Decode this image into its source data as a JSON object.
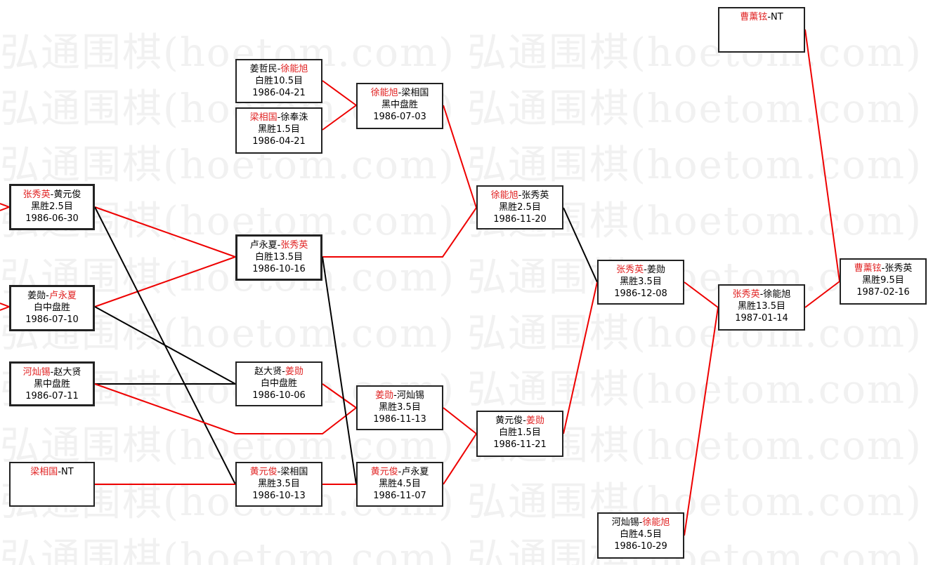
{
  "watermark": "弘通围棋(hoetom.com)",
  "colors": {
    "winner": "#e02020",
    "win_line": "#ee0000",
    "loss_line": "#000000"
  },
  "matches": [
    {
      "id": "A",
      "p1": "姜哲民",
      "p2": "徐能旭",
      "winner": 2,
      "result": "白胜10.5目",
      "date": "1986-04-21"
    },
    {
      "id": "B",
      "p1": "梁相国",
      "p2": "徐奉洙",
      "winner": 1,
      "result": "黑胜1.5目",
      "date": "1986-04-21"
    },
    {
      "id": "C",
      "p1": "徐能旭",
      "p2": "梁相国",
      "winner": 1,
      "result": "黑中盘胜",
      "date": "1986-07-03"
    },
    {
      "id": "D",
      "p1": "张秀英",
      "p2": "黄元俊",
      "winner": 1,
      "result": "黑胜2.5目",
      "date": "1986-06-30"
    },
    {
      "id": "E",
      "p1": "姜勋",
      "p2": "卢永夏",
      "winner": 2,
      "result": "白中盘胜",
      "date": "1986-07-10"
    },
    {
      "id": "F",
      "p1": "河灿锡",
      "p2": "赵大贤",
      "winner": 1,
      "result": "黑中盘胜",
      "date": "1986-07-11"
    },
    {
      "id": "G",
      "p1": "梁相国",
      "p2": "NT",
      "winner": 1,
      "result": "",
      "date": ""
    },
    {
      "id": "H",
      "p1": "卢永夏",
      "p2": "张秀英",
      "winner": 2,
      "result": "白胜13.5目",
      "date": "1986-10-16"
    },
    {
      "id": "I",
      "p1": "赵大贤",
      "p2": "姜勋",
      "winner": 2,
      "result": "白中盘胜",
      "date": "1986-10-06"
    },
    {
      "id": "J",
      "p1": "黄元俊",
      "p2": "梁相国",
      "winner": 1,
      "result": "黑胜3.5目",
      "date": "1986-10-13"
    },
    {
      "id": "K",
      "p1": "徐能旭",
      "p2": "张秀英",
      "winner": 1,
      "result": "黑胜2.5目",
      "date": "1986-11-20"
    },
    {
      "id": "L",
      "p1": "姜勋",
      "p2": "河灿锡",
      "winner": 1,
      "result": "黑胜3.5目",
      "date": "1986-11-13"
    },
    {
      "id": "M",
      "p1": "黄元俊",
      "p2": "卢永夏",
      "winner": 1,
      "result": "黑胜4.5目",
      "date": "1986-11-07"
    },
    {
      "id": "N",
      "p1": "黄元俊",
      "p2": "姜勋",
      "winner": 2,
      "result": "白胜1.5目",
      "date": "1986-11-21"
    },
    {
      "id": "O",
      "p1": "张秀英",
      "p2": "姜勋",
      "winner": 1,
      "result": "黑胜3.5目",
      "date": "1986-12-08"
    },
    {
      "id": "P",
      "p1": "河灿锡",
      "p2": "徐能旭",
      "winner": 2,
      "result": "白胜4.5目",
      "date": "1986-10-29"
    },
    {
      "id": "Q",
      "p1": "张秀英",
      "p2": "徐能旭",
      "winner": 1,
      "result": "黑胜13.5目",
      "date": "1987-01-14"
    },
    {
      "id": "R",
      "p1": "曹薰铉",
      "p2": "张秀英",
      "winner": 1,
      "result": "黑胜9.5目",
      "date": "1987-02-16"
    },
    {
      "id": "S",
      "p1": "曹薰铉",
      "p2": "NT",
      "winner": 1,
      "result": "",
      "date": ""
    }
  ]
}
